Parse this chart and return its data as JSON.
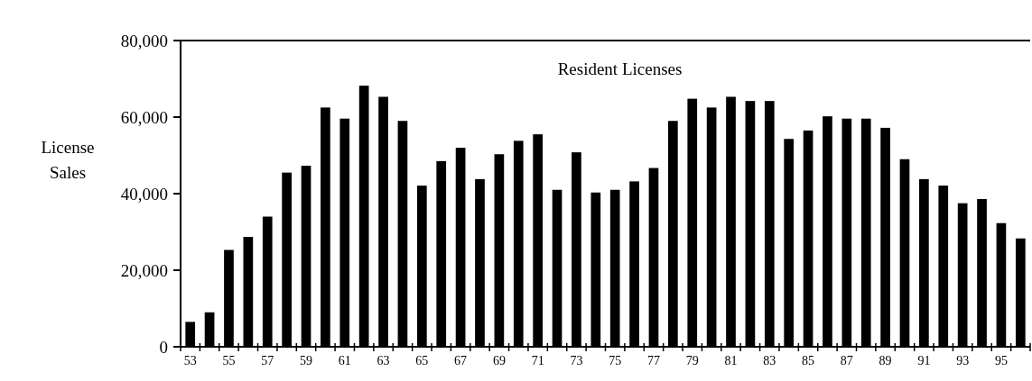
{
  "chart_data": {
    "type": "bar",
    "title": "Resident Licenses",
    "ylabel": "License Sales",
    "categories": [
      "53",
      null,
      "55",
      null,
      "57",
      null,
      "59",
      null,
      "61",
      null,
      "63",
      null,
      "65",
      null,
      "67",
      null,
      "69",
      null,
      "71",
      null,
      "73",
      null,
      "75",
      null,
      "77",
      null,
      "79",
      null,
      "81",
      null,
      "83",
      null,
      "85",
      null,
      "87",
      null,
      "89",
      null,
      "91",
      null,
      "93",
      null,
      "95",
      null
    ],
    "values": [
      6500,
      9000,
      25300,
      28700,
      34000,
      45500,
      47300,
      62500,
      59600,
      68200,
      65300,
      59000,
      42100,
      48500,
      52000,
      43800,
      50300,
      53800,
      55500,
      41000,
      50800,
      40300,
      41000,
      43200,
      46700,
      59000,
      64800,
      62500,
      65300,
      64200,
      64200,
      54300,
      56500,
      60200,
      59600,
      59600,
      57200,
      49000,
      43800,
      42100,
      37500,
      38600,
      32300,
      28300
    ],
    "color": "#000000",
    "ylim": [
      0,
      80000
    ],
    "yticks": [
      0,
      {
        "value": 20000,
        "label": "20,000"
      },
      {
        "value": 40000,
        "label": "40,000"
      },
      {
        "value": 60000,
        "label": "60,000"
      },
      {
        "value": 80000,
        "label": "80,000"
      }
    ]
  }
}
